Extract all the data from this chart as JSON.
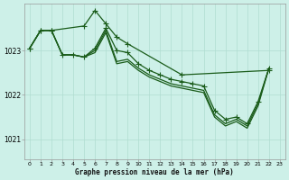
{
  "title": "Graphe pression niveau de la mer (hPa)",
  "bg_color": "#cdf0e8",
  "grid_color": "#b0ddd0",
  "line_color": "#1a5c1a",
  "xlim": [
    -0.5,
    23.5
  ],
  "ylim": [
    1020.55,
    1024.05
  ],
  "yticks": [
    1021,
    1022,
    1023
  ],
  "xticks": [
    0,
    1,
    2,
    3,
    4,
    5,
    6,
    7,
    8,
    9,
    10,
    11,
    12,
    13,
    14,
    15,
    16,
    17,
    18,
    19,
    20,
    21,
    22,
    23
  ],
  "line1_x": [
    0,
    1,
    2,
    5,
    6,
    7,
    8,
    9,
    14,
    22
  ],
  "line1_y": [
    1023.05,
    1023.45,
    1023.45,
    1023.55,
    1023.9,
    1023.6,
    1023.3,
    1023.15,
    1022.45,
    1022.55
  ],
  "line2_x": [
    0,
    1,
    2,
    3,
    4,
    5,
    6,
    7,
    8,
    9,
    10,
    11,
    12,
    13,
    14,
    15,
    16,
    17,
    18,
    19,
    20,
    21,
    22
  ],
  "line2_y": [
    1023.05,
    1023.45,
    1023.45,
    1022.9,
    1022.9,
    1022.85,
    1023.05,
    1023.5,
    1023.0,
    1022.95,
    1022.7,
    1022.55,
    1022.45,
    1022.35,
    1022.3,
    1022.25,
    1022.2,
    1021.65,
    1021.45,
    1021.5,
    1021.35,
    1021.85,
    1022.6
  ],
  "line3_x": [
    0,
    1,
    2,
    3,
    4,
    5,
    6,
    7,
    8,
    9,
    10,
    11,
    12,
    13,
    14,
    15,
    16,
    17,
    18,
    19,
    20,
    21,
    22
  ],
  "line3_y": [
    1023.05,
    1023.45,
    1023.45,
    1022.9,
    1022.9,
    1022.85,
    1023.0,
    1023.45,
    1022.75,
    1022.8,
    1022.6,
    1022.45,
    1022.35,
    1022.25,
    1022.2,
    1022.15,
    1022.1,
    1021.55,
    1021.35,
    1021.45,
    1021.3,
    1021.8,
    1022.6
  ],
  "line4_x": [
    0,
    1,
    2,
    3,
    4,
    5,
    6,
    7,
    8,
    9,
    10,
    11,
    12,
    13,
    14,
    15,
    16,
    17,
    18,
    19,
    20,
    21,
    22
  ],
  "line4_y": [
    1023.05,
    1023.45,
    1023.45,
    1022.9,
    1022.9,
    1022.85,
    1022.95,
    1023.4,
    1022.7,
    1022.75,
    1022.55,
    1022.4,
    1022.3,
    1022.2,
    1022.15,
    1022.1,
    1022.05,
    1021.5,
    1021.3,
    1021.4,
    1021.25,
    1021.75,
    1022.6
  ]
}
